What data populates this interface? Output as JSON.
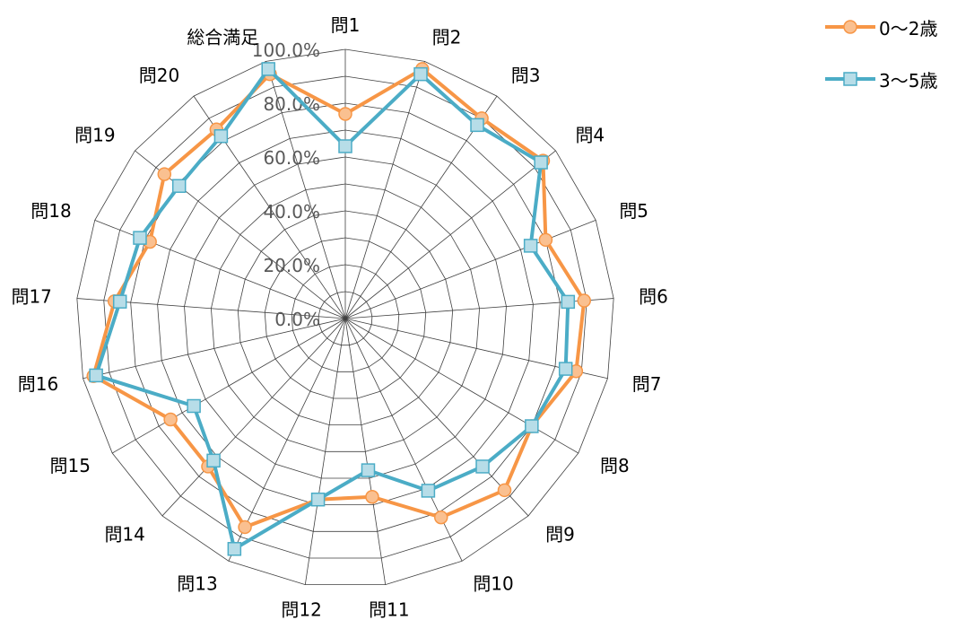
{
  "chart_data": {
    "type": "radar",
    "categories": [
      "問1",
      "問2",
      "問3",
      "問4",
      "問5",
      "問6",
      "問7",
      "問8",
      "問9",
      "問10",
      "問11",
      "問12",
      "問13",
      "問14",
      "問15",
      "問16",
      "問17",
      "問18",
      "問19",
      "問20",
      "総合満足"
    ],
    "series": [
      {
        "name": "0〜2歳",
        "color": "#F79646",
        "fill": "#FAC090",
        "marker": "circle",
        "values": [
          76,
          97,
          90,
          94,
          80,
          89,
          88,
          80,
          87,
          82,
          67,
          68,
          86,
          75,
          75,
          96,
          86,
          78,
          86,
          85,
          95
        ]
      },
      {
        "name": "3〜5歳",
        "color": "#4BACC6",
        "fill": "#B7DDE8",
        "marker": "square",
        "values": [
          64,
          95,
          87,
          93,
          74,
          83,
          84,
          80,
          75,
          71,
          57,
          68,
          95,
          72,
          65,
          95,
          84,
          82,
          79,
          82,
          97
        ]
      }
    ],
    "ticks": [
      "0.0%",
      "20.0%",
      "40.0%",
      "60.0%",
      "80.0%",
      "100.0%"
    ],
    "range": [
      0,
      100
    ],
    "legend_position": "top-right"
  }
}
